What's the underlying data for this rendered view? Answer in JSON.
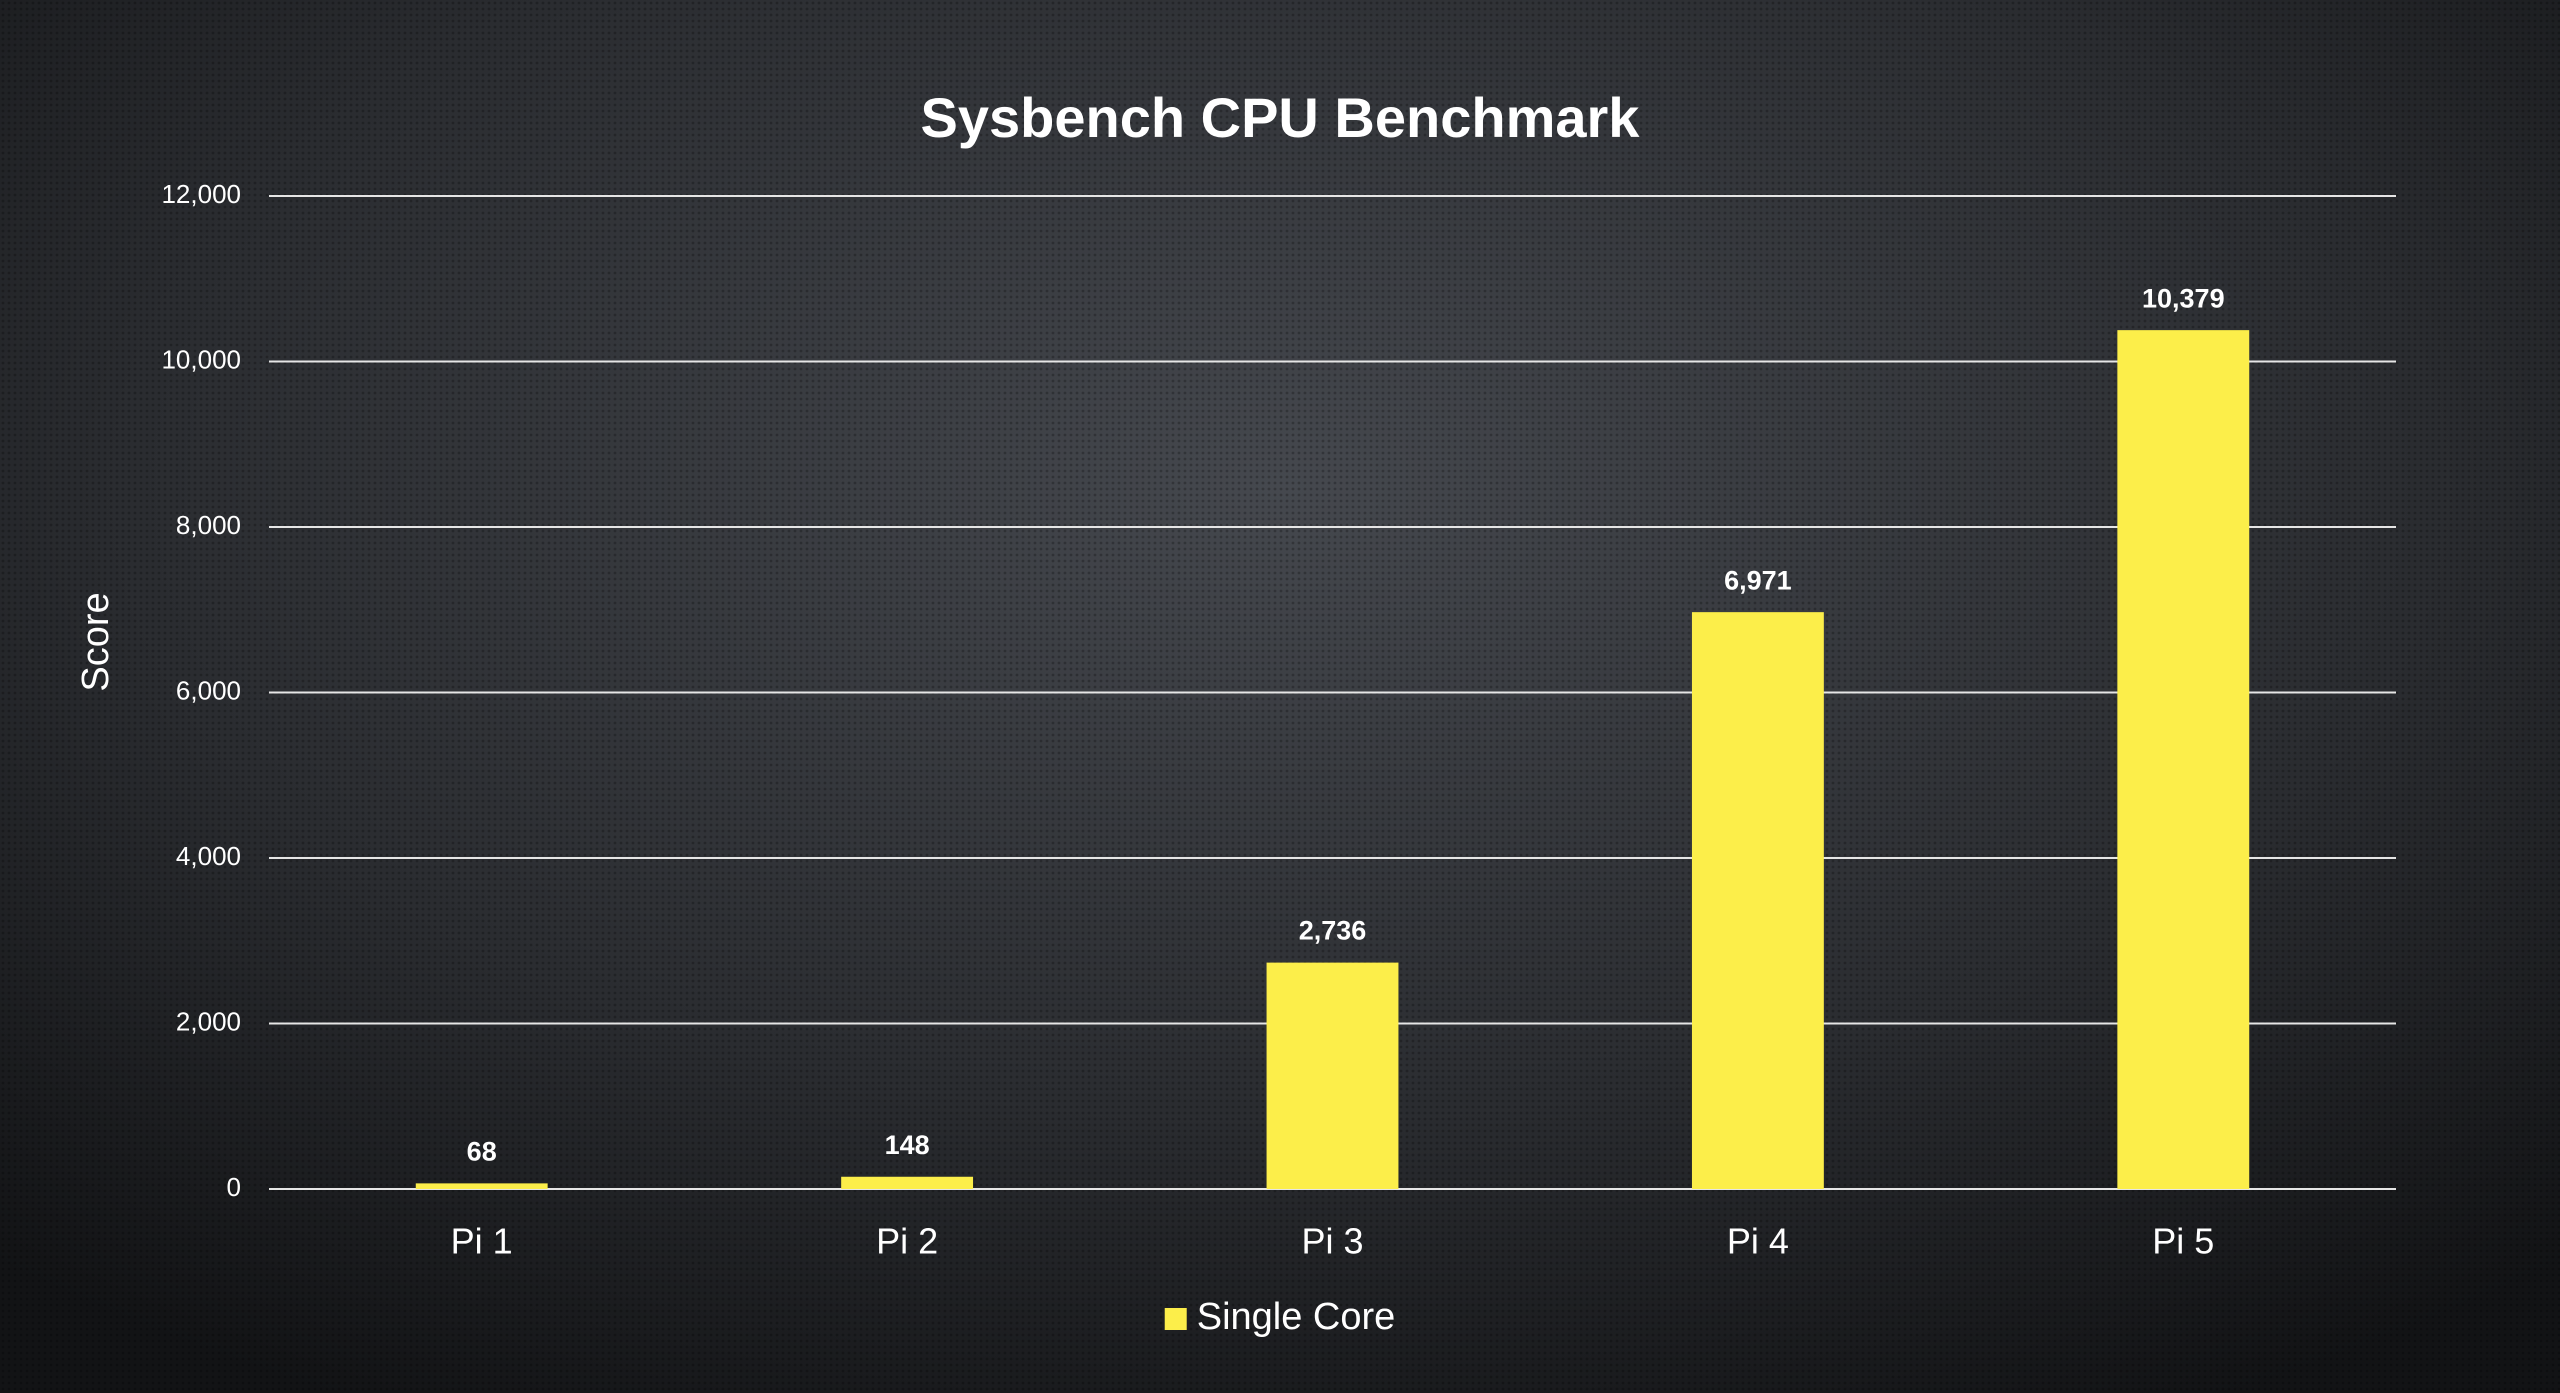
{
  "chart_data": {
    "type": "bar",
    "title": "Sysbench CPU Benchmark",
    "y_label": "Score",
    "categories": [
      "Pi 1",
      "Pi 2",
      "Pi 3",
      "Pi 4",
      "Pi 5"
    ],
    "series": [
      {
        "name": "Single Core",
        "color": "#fcee4a",
        "values": [
          68,
          148,
          2736,
          6971,
          10379
        ],
        "value_labels": [
          "68",
          "148",
          "2,736",
          "6,971",
          "10,379"
        ]
      }
    ],
    "ylim": [
      0,
      12000
    ],
    "yticks": [
      0,
      {
        "value": 2000,
        "label": "2,000"
      },
      {
        "value": 4000,
        "label": "4,000"
      },
      {
        "value": 6000,
        "label": "6,000"
      },
      {
        "value": 8000,
        "label": "8,000"
      },
      {
        "value": 10000,
        "label": "10,000"
      },
      {
        "value": 12000,
        "label": "12,000"
      }
    ],
    "grid": true,
    "legend": "bottom"
  }
}
